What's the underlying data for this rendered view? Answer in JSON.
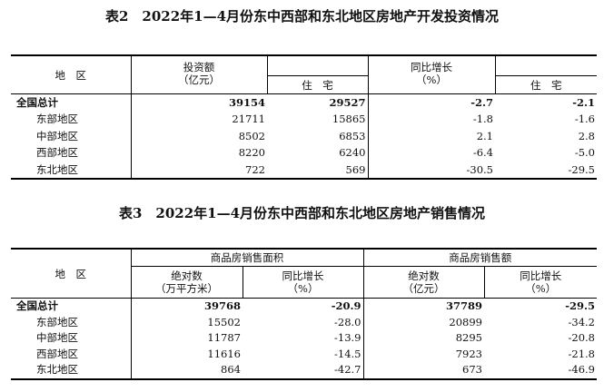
{
  "table2": {
    "title": "表2　2022年1—4月份东中西部和东北地区房地产开发投资情况",
    "headers": {
      "region": "地　区",
      "investment": "投资额",
      "investment_unit": "（亿元）",
      "residential": "住　宅",
      "yoy": "同比增长",
      "yoy_unit": "（%）",
      "residential_yoy": "住　宅"
    },
    "rows": [
      {
        "region": "全国总计",
        "investment": "39154",
        "residential": "29527",
        "yoy": "-2.7",
        "residential_yoy": "-2.1"
      },
      {
        "region": "东部地区",
        "investment": "21711",
        "residential": "15865",
        "yoy": "-1.8",
        "residential_yoy": "-1.6"
      },
      {
        "region": "中部地区",
        "investment": "8502",
        "residential": "6853",
        "yoy": "2.1",
        "residential_yoy": "2.8"
      },
      {
        "region": "西部地区",
        "investment": "8220",
        "residential": "6240",
        "yoy": "-6.4",
        "residential_yoy": "-5.0"
      },
      {
        "region": "东北地区",
        "investment": "722",
        "residential": "569",
        "yoy": "-30.5",
        "residential_yoy": "-29.5"
      }
    ]
  },
  "table3": {
    "title": "表3　2022年1—4月份东中西部和东北地区房地产销售情况",
    "headers": {
      "region": "地　区",
      "area_group": "商品房销售面积",
      "sales_group": "商品房销售额",
      "absolute": "绝对数",
      "area_unit": "（万平方米）",
      "yoy": "同比增长",
      "yoy_unit": "（%）",
      "absolute2": "绝对数",
      "sales_unit": "（亿元）",
      "yoy2": "同比增长",
      "yoy_unit2": "（%）"
    },
    "rows": [
      {
        "region": "全国总计",
        "area": "39768",
        "area_yoy": "-20.9",
        "sales": "37789",
        "sales_yoy": "-29.5"
      },
      {
        "region": "东部地区",
        "area": "15502",
        "area_yoy": "-28.0",
        "sales": "20899",
        "sales_yoy": "-34.2"
      },
      {
        "region": "中部地区",
        "area": "11787",
        "area_yoy": "-13.9",
        "sales": "8295",
        "sales_yoy": "-20.8"
      },
      {
        "region": "西部地区",
        "area": "11616",
        "area_yoy": "-14.5",
        "sales": "7923",
        "sales_yoy": "-21.8"
      },
      {
        "region": "东北地区",
        "area": "864",
        "area_yoy": "-42.7",
        "sales": "673",
        "sales_yoy": "-46.9"
      }
    ]
  }
}
